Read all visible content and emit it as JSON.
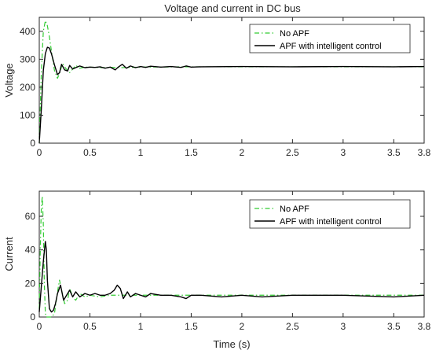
{
  "chart_data": [
    {
      "type": "line",
      "title": "Voltage and current in DC bus",
      "xlabel": "",
      "ylabel": "Voltage",
      "xlim": [
        0,
        3.8
      ],
      "ylim": [
        0,
        450
      ],
      "xticks": [
        0,
        0.5,
        1,
        1.5,
        2,
        2.5,
        3,
        3.5,
        3.8
      ],
      "xtick_labels": [
        "0",
        "0.5",
        "1",
        "1.5",
        "2",
        "2.5",
        "3",
        "3.5",
        "3.8"
      ],
      "yticks": [
        0,
        100,
        200,
        300,
        400
      ],
      "ytick_labels": [
        "0",
        "100",
        "200",
        "300",
        "400"
      ],
      "grid": false,
      "legend": "top-right",
      "series": [
        {
          "name": "No APF",
          "color": "#33cc33",
          "style": "dash-dot",
          "x": [
            0,
            0.02,
            0.04,
            0.06,
            0.08,
            0.1,
            0.12,
            0.15,
            0.18,
            0.2,
            0.23,
            0.26,
            0.3,
            0.33,
            0.36,
            0.4,
            0.45,
            0.5,
            0.6,
            0.7,
            0.8,
            1.0,
            1.5,
            2.0,
            2.5,
            3.0,
            3.5,
            3.8
          ],
          "y": [
            0,
            250,
            400,
            438,
            420,
            380,
            330,
            260,
            232,
            250,
            285,
            268,
            252,
            265,
            278,
            268,
            272,
            272,
            270,
            271,
            270,
            272,
            273,
            273,
            273,
            273,
            273,
            273
          ]
        },
        {
          "name": "APF with intelligent control",
          "color": "#000000",
          "style": "solid",
          "x": [
            0,
            0.02,
            0.04,
            0.06,
            0.08,
            0.1,
            0.12,
            0.15,
            0.18,
            0.2,
            0.22,
            0.25,
            0.28,
            0.3,
            0.33,
            0.36,
            0.4,
            0.45,
            0.5,
            0.55,
            0.6,
            0.65,
            0.7,
            0.75,
            0.78,
            0.82,
            0.86,
            0.9,
            0.95,
            1.0,
            1.05,
            1.1,
            1.2,
            1.3,
            1.4,
            1.45,
            1.5,
            1.6,
            2.0,
            2.5,
            3.0,
            3.5,
            3.8
          ],
          "y": [
            0,
            120,
            260,
            320,
            343,
            340,
            320,
            280,
            245,
            252,
            282,
            262,
            258,
            278,
            265,
            270,
            276,
            270,
            272,
            271,
            273,
            268,
            272,
            262,
            272,
            282,
            268,
            276,
            270,
            274,
            271,
            275,
            272,
            274,
            271,
            276,
            272,
            273,
            274,
            273,
            274,
            273,
            274
          ]
        }
      ]
    },
    {
      "type": "line",
      "title": "",
      "xlabel": "Time (s)",
      "ylabel": "Current",
      "xlim": [
        0,
        3.8
      ],
      "ylim": [
        0,
        75
      ],
      "xticks": [
        0,
        0.5,
        1,
        1.5,
        2,
        2.5,
        3,
        3.5,
        3.8
      ],
      "xtick_labels": [
        "0",
        "0.5",
        "1",
        "1.5",
        "2",
        "2.5",
        "3",
        "3.5",
        "3.8"
      ],
      "yticks": [
        0,
        20,
        40,
        60
      ],
      "ytick_labels": [
        "0",
        "20",
        "40",
        "60"
      ],
      "grid": false,
      "legend": "top-right",
      "series": [
        {
          "name": "No APF",
          "color": "#33cc33",
          "style": "dash-dot",
          "x": [
            0,
            0.01,
            0.02,
            0.03,
            0.04,
            0.05,
            0.06,
            0.07,
            0.08,
            0.1,
            0.12,
            0.15,
            0.18,
            0.2,
            0.22,
            0.25,
            0.28,
            0.3,
            0.33,
            0.36,
            0.4,
            0.45,
            0.5,
            0.6,
            0.7,
            0.8,
            1.0,
            1.5,
            2.0,
            2.5,
            3.0,
            3.5,
            3.8
          ],
          "y": [
            5,
            40,
            65,
            72,
            55,
            20,
            2,
            0,
            0,
            0,
            0,
            2,
            15,
            22,
            16,
            8,
            10,
            17,
            12,
            10,
            14,
            12,
            13,
            12,
            13,
            13,
            13,
            13,
            13,
            13,
            13,
            13,
            13
          ]
        },
        {
          "name": "APF with intelligent control",
          "color": "#000000",
          "style": "solid",
          "x": [
            0,
            0.02,
            0.04,
            0.06,
            0.07,
            0.08,
            0.1,
            0.12,
            0.14,
            0.16,
            0.18,
            0.21,
            0.24,
            0.27,
            0.3,
            0.33,
            0.36,
            0.4,
            0.45,
            0.5,
            0.55,
            0.6,
            0.65,
            0.7,
            0.74,
            0.77,
            0.8,
            0.83,
            0.87,
            0.9,
            0.95,
            1.0,
            1.05,
            1.1,
            1.2,
            1.3,
            1.4,
            1.45,
            1.5,
            1.6,
            1.8,
            2.0,
            2.2,
            2.5,
            3.0,
            3.5,
            3.8
          ],
          "y": [
            3,
            18,
            33,
            45,
            40,
            22,
            5,
            3,
            4,
            8,
            14,
            19,
            10,
            13,
            16,
            12,
            15,
            12,
            14,
            13,
            14,
            13,
            13,
            14,
            16,
            19,
            17,
            11,
            15,
            12,
            14,
            13,
            12,
            14,
            13,
            13,
            12,
            11,
            13,
            13,
            12,
            13,
            12,
            13,
            13,
            12,
            13
          ]
        }
      ]
    }
  ]
}
